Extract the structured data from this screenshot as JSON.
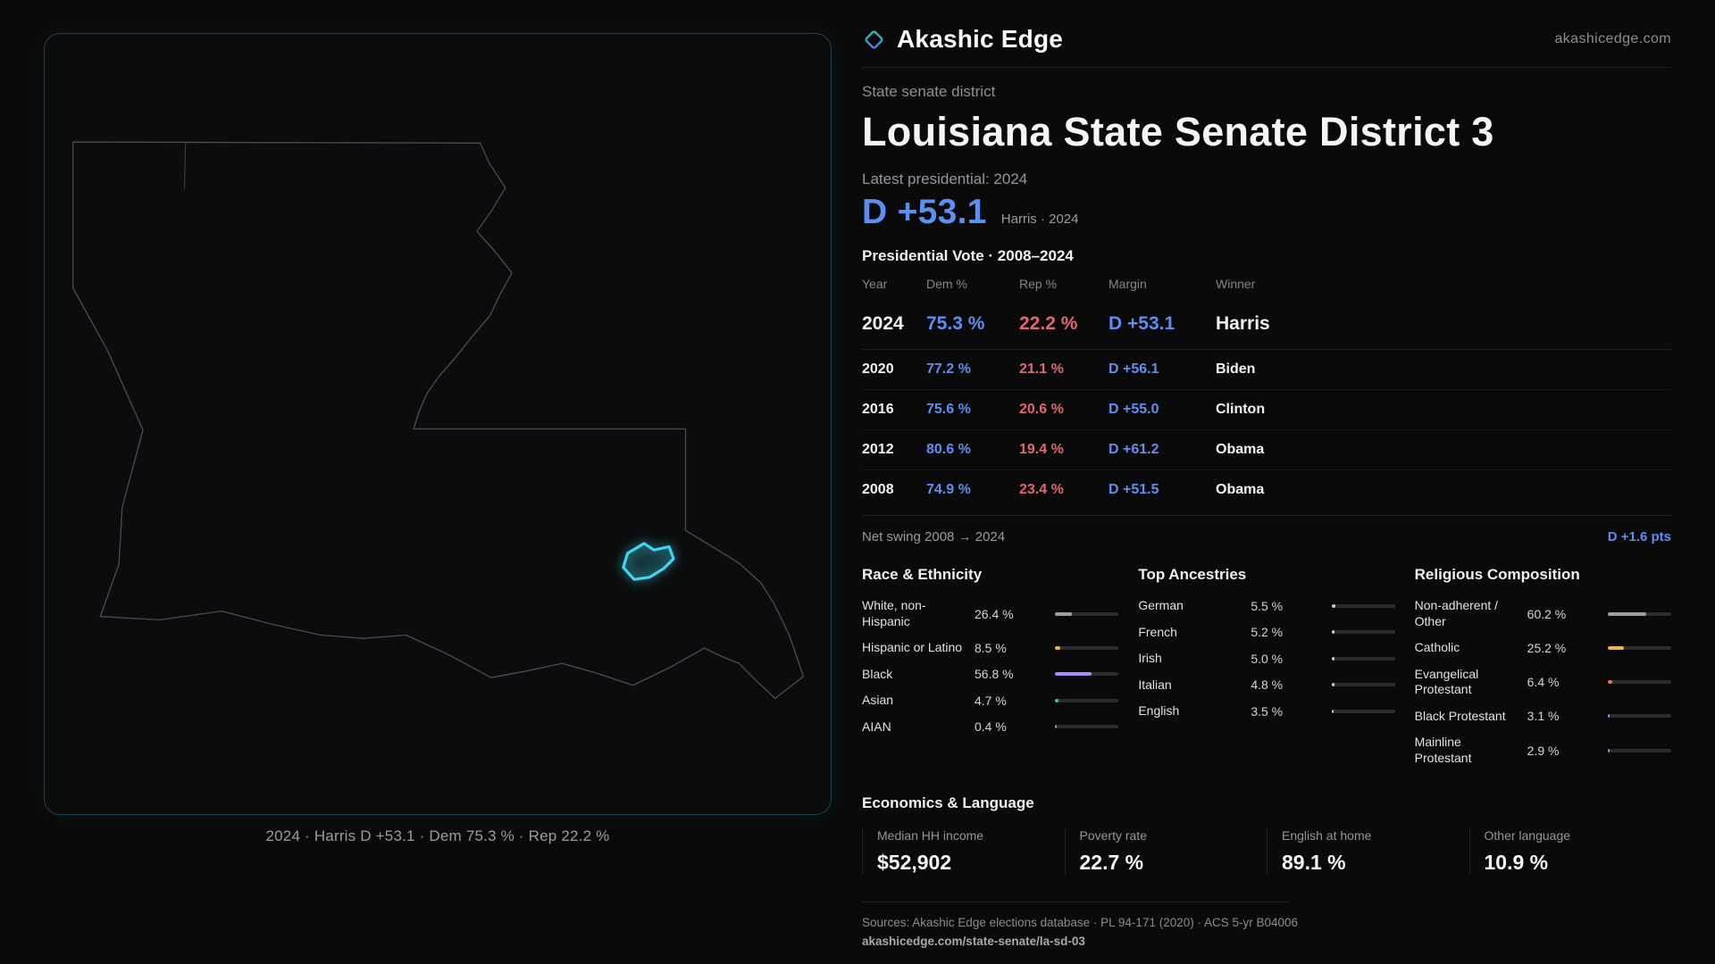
{
  "brand": {
    "name": "Akashic Edge",
    "site": "akashicedge.com"
  },
  "header": {
    "kicker": "State senate district",
    "title": "Louisiana State Senate District 3"
  },
  "latest": {
    "label": "Latest presidential: 2024",
    "margin": "D +53.1",
    "winner_note": "Harris · 2024"
  },
  "vote_table": {
    "title": "Presidential Vote · 2008–2024",
    "columns": [
      "Year",
      "Dem %",
      "Rep %",
      "Margin",
      "Winner"
    ],
    "rows": [
      {
        "year": "2024",
        "dem": "75.3 %",
        "rep": "22.2 %",
        "margin": "D +53.1",
        "winner": "Harris"
      },
      {
        "year": "2020",
        "dem": "77.2 %",
        "rep": "21.1 %",
        "margin": "D +56.1",
        "winner": "Biden"
      },
      {
        "year": "2016",
        "dem": "75.6 %",
        "rep": "20.6 %",
        "margin": "D +55.0",
        "winner": "Clinton"
      },
      {
        "year": "2012",
        "dem": "80.6 %",
        "rep": "19.4 %",
        "margin": "D +61.2",
        "winner": "Obama"
      },
      {
        "year": "2008",
        "dem": "74.9 %",
        "rep": "23.4 %",
        "margin": "D +51.5",
        "winner": "Obama"
      }
    ],
    "net_swing_label": "Net swing 2008 → 2024",
    "net_swing_value": "D +1.6 pts"
  },
  "demographics": {
    "race": {
      "title": "Race & Ethnicity",
      "items": [
        {
          "label": "White, non-Hispanic",
          "value": "26.4 %",
          "pct": 26.4,
          "color": "#9aa0a8"
        },
        {
          "label": "Hispanic or Latino",
          "value": "8.5 %",
          "pct": 8.5,
          "color": "#e8b84b"
        },
        {
          "label": "Black",
          "value": "56.8 %",
          "pct": 56.8,
          "color": "#a78bfa"
        },
        {
          "label": "Asian",
          "value": "4.7 %",
          "pct": 4.7,
          "color": "#34d399"
        },
        {
          "label": "AIAN",
          "value": "0.4 %",
          "pct": 0.4,
          "color": "#9aa0a8"
        }
      ]
    },
    "ancestry": {
      "title": "Top Ancestries",
      "items": [
        {
          "label": "German",
          "value": "5.5 %",
          "pct": 5.5,
          "color": "#c9cdd4"
        },
        {
          "label": "French",
          "value": "5.2 %",
          "pct": 5.2,
          "color": "#c9cdd4"
        },
        {
          "label": "Irish",
          "value": "5.0 %",
          "pct": 5.0,
          "color": "#c9cdd4"
        },
        {
          "label": "Italian",
          "value": "4.8 %",
          "pct": 4.8,
          "color": "#c9cdd4"
        },
        {
          "label": "English",
          "value": "3.5 %",
          "pct": 3.5,
          "color": "#c9cdd4"
        }
      ]
    },
    "religion": {
      "title": "Religious Composition",
      "items": [
        {
          "label": "Non-adherent / Other",
          "value": "60.2 %",
          "pct": 60.2,
          "color": "#9aa0a8"
        },
        {
          "label": "Catholic",
          "value": "25.2 %",
          "pct": 25.2,
          "color": "#e8b84b"
        },
        {
          "label": "Evangelical Protestant",
          "value": "6.4 %",
          "pct": 6.4,
          "color": "#ef6e6e"
        },
        {
          "label": "Black Protestant",
          "value": "3.1 %",
          "pct": 3.1,
          "color": "#6ea8ff"
        },
        {
          "label": "Mainline Protestant",
          "value": "2.9 %",
          "pct": 2.9,
          "color": "#6ea8ff"
        }
      ]
    }
  },
  "economics": {
    "title": "Economics & Language",
    "stats": [
      {
        "label": "Median HH income",
        "value": "$52,902"
      },
      {
        "label": "Poverty rate",
        "value": "22.7 %"
      },
      {
        "label": "English at home",
        "value": "89.1 %"
      },
      {
        "label": "Other language",
        "value": "10.9 %"
      }
    ]
  },
  "map": {
    "caption": "2024 · Harris D +53.1 · Dem 75.3 % · Rep 22.2 %"
  },
  "footer": {
    "sources": "Sources: Akashic Edge elections database · PL 94-171 (2020) · ACS 5-yr B04006",
    "permalink": "akashicedge.com/state-senate/la-sd-03"
  },
  "colors": {
    "dem": "#5e8ff0",
    "rep": "#e0686f",
    "accent": "#3fd6f2"
  }
}
